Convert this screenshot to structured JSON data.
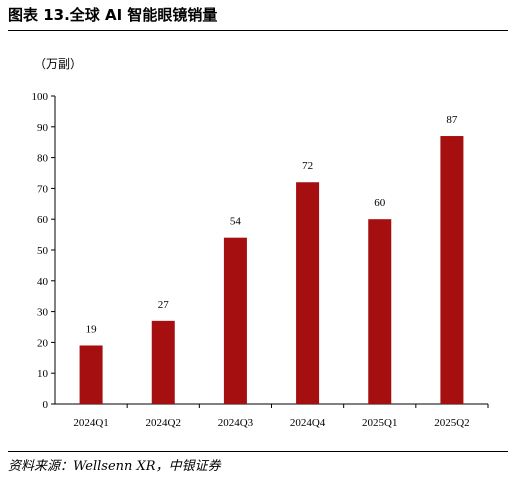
{
  "header": {
    "figure_title": "图表 13.全球 AI 智能眼镜销量"
  },
  "footer": {
    "source": "资料来源：Wellsenn XR，中银证券"
  },
  "chart_data": {
    "type": "bar",
    "unit_label": "（万副）",
    "categories": [
      "2024Q1",
      "2024Q2",
      "2024Q3",
      "2024Q4",
      "2025Q1",
      "2025Q2"
    ],
    "values": [
      19,
      27,
      54,
      72,
      60,
      87
    ],
    "data_labels": [
      "19",
      "27",
      "54",
      "72",
      "60",
      "87"
    ],
    "yticks": [
      "0",
      "10",
      "20",
      "30",
      "40",
      "50",
      "60",
      "70",
      "80",
      "90",
      "100"
    ],
    "ylim": [
      0,
      100
    ],
    "grid": false,
    "bar_color": "#A50F0F"
  }
}
